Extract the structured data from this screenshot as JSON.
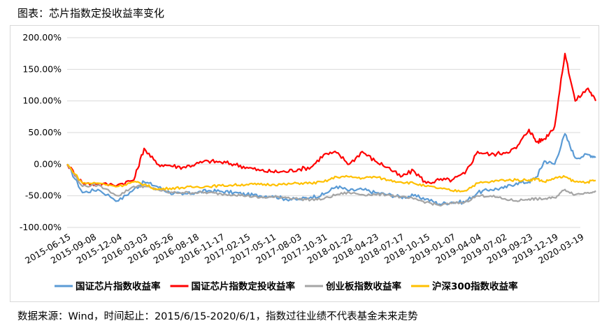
{
  "header": {
    "title": "图表：芯片指数定投收益率变化"
  },
  "footer": {
    "source": "数据来源：Wind，时间起止：2015/6/15-2020/6/1，指数过往业绩不代表基金未来走势"
  },
  "chart_data": {
    "type": "line",
    "xlabel": "",
    "ylabel": "",
    "ylim": [
      -100,
      200
    ],
    "yticks": [
      "-100.00%",
      "-50.00%",
      "0.00%",
      "50.00%",
      "100.00%",
      "150.00%",
      "200.00%"
    ],
    "xticks": [
      "2015-06-15",
      "2015-09-08",
      "2015-12-04",
      "2016-03-03",
      "2016-05-26",
      "2016-08-18",
      "2016-11-17",
      "2017-02-15",
      "2017-05-11",
      "2017-08-03",
      "2017-10-31",
      "2018-01-22",
      "2018-04-23",
      "2018-07-17",
      "2018-10-15",
      "2019-01-07",
      "2019-04-04",
      "2019-07-02",
      "2019-09-23",
      "2019-12-19",
      "2020-03-19"
    ],
    "x": [
      0,
      0.6,
      1.2,
      2,
      2.6,
      3,
      3.5,
      4,
      4.5,
      5,
      5.5,
      6,
      6.5,
      7,
      7.5,
      8,
      8.5,
      9,
      9.5,
      10,
      10.5,
      11,
      11.5,
      12,
      12.5,
      13,
      13.5,
      14,
      14.5,
      15,
      15.5,
      16,
      16.5,
      17,
      17.5,
      18,
      18.3,
      18.6,
      19,
      19.4,
      19.8,
      20.3,
      20.6
    ],
    "legend_position": "bottom",
    "grid": true,
    "series": [
      {
        "name": "国证芯片指数收益率",
        "color": "#5b9bd5",
        "values": [
          0,
          -45,
          -40,
          -58,
          -40,
          -28,
          -35,
          -45,
          -48,
          -45,
          -42,
          -43,
          -45,
          -48,
          -50,
          -50,
          -55,
          -56,
          -52,
          -48,
          -35,
          -42,
          -40,
          -45,
          -48,
          -52,
          -50,
          -55,
          -63,
          -60,
          -60,
          -45,
          -40,
          -38,
          -30,
          -28,
          -20,
          5,
          0,
          48,
          10,
          15,
          12
        ]
      },
      {
        "name": "国证芯片指数定投收益率",
        "color": "#ff0000",
        "values": [
          0,
          -30,
          -32,
          -32,
          -25,
          25,
          0,
          -2,
          -5,
          0,
          5,
          3,
          0,
          -5,
          -10,
          -12,
          -12,
          -8,
          -5,
          15,
          18,
          0,
          20,
          5,
          -5,
          -20,
          -10,
          -30,
          -25,
          -25,
          -15,
          20,
          15,
          18,
          25,
          55,
          35,
          40,
          60,
          175,
          100,
          120,
          100
        ]
      },
      {
        "name": "创业板指数收益率",
        "color": "#a5a5a5",
        "values": [
          0,
          -35,
          -33,
          -50,
          -35,
          -35,
          -40,
          -45,
          -45,
          -45,
          -45,
          -47,
          -48,
          -50,
          -53,
          -52,
          -52,
          -55,
          -56,
          -55,
          -48,
          -45,
          -48,
          -48,
          -48,
          -52,
          -55,
          -60,
          -65,
          -62,
          -60,
          -50,
          -50,
          -55,
          -58,
          -55,
          -55,
          -55,
          -53,
          -40,
          -48,
          -45,
          -42
        ]
      },
      {
        "name": "沪深300指数收益率",
        "color": "#ffc000",
        "values": [
          0,
          -30,
          -30,
          -35,
          -28,
          -32,
          -40,
          -38,
          -37,
          -36,
          -35,
          -34,
          -33,
          -32,
          -32,
          -32,
          -32,
          -30,
          -30,
          -28,
          -20,
          -20,
          -22,
          -20,
          -25,
          -28,
          -30,
          -35,
          -38,
          -42,
          -42,
          -30,
          -28,
          -25,
          -25,
          -25,
          -23,
          -28,
          -22,
          -20,
          -28,
          -28,
          -26
        ]
      }
    ]
  }
}
